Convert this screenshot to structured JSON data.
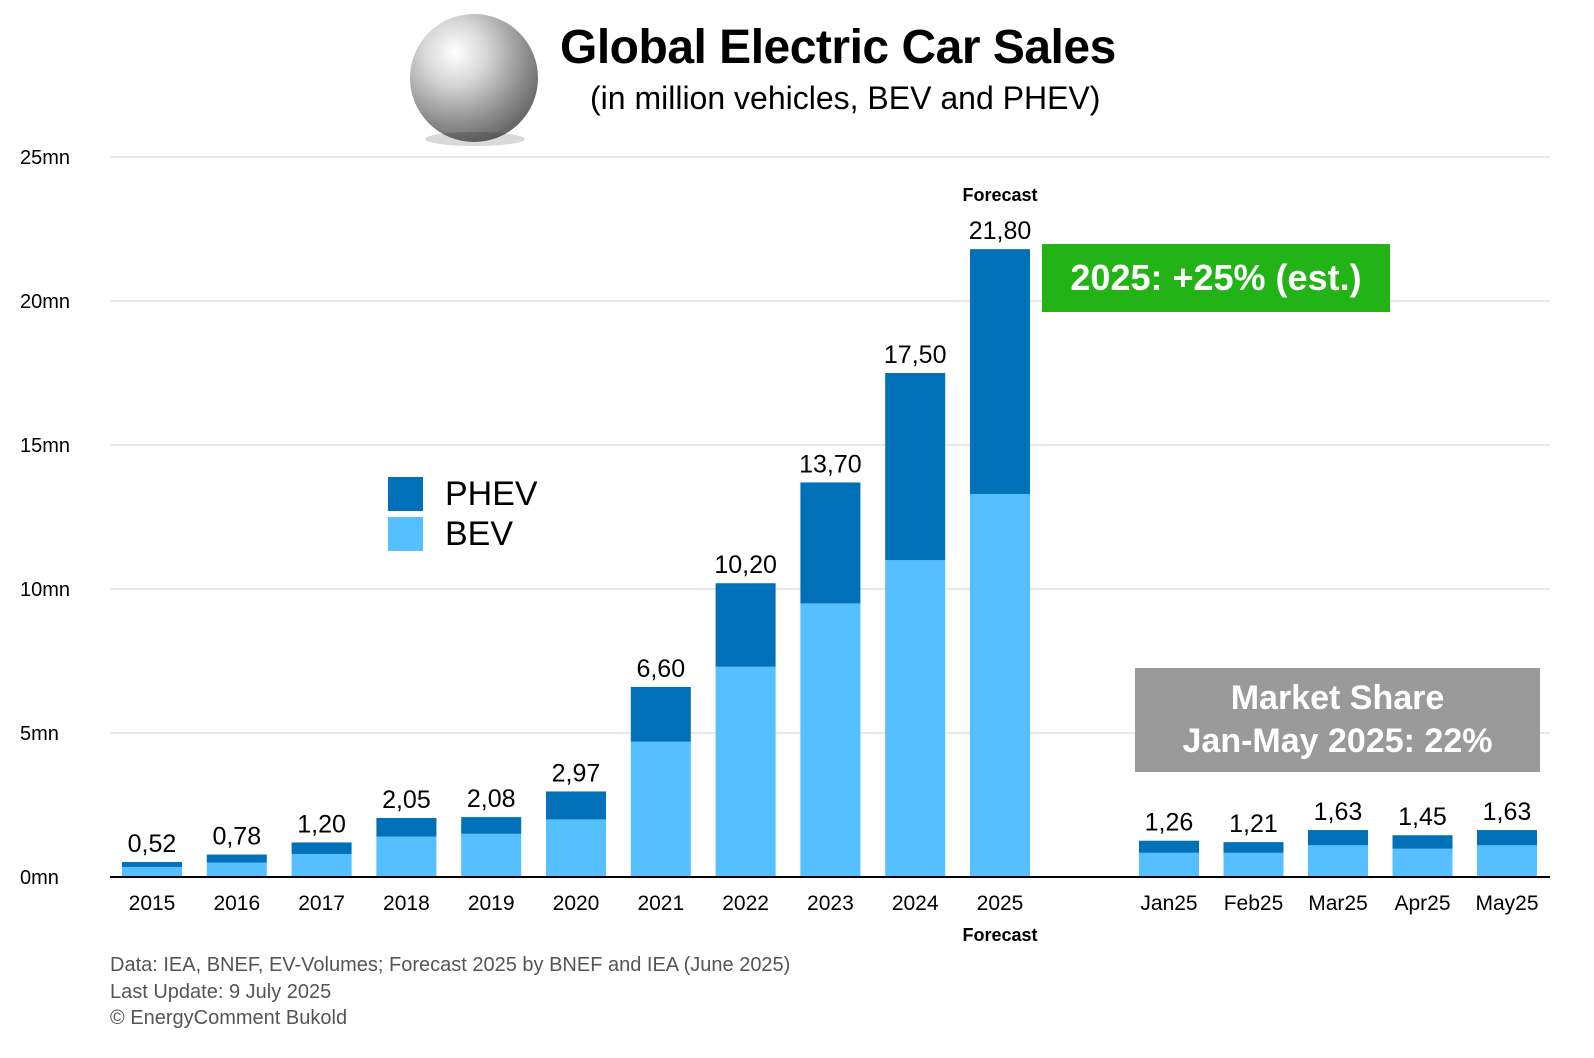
{
  "header": {
    "title": "Global Electric Car Sales",
    "subtitle": "(in million vehicles, BEV and PHEV)",
    "globe_icon": "globe-icon"
  },
  "annotations": {
    "growth": "2025: +25% (est.)",
    "market_share_line1": "Market Share",
    "market_share_line2": "Jan-May 2025: 22%",
    "forecast_top": "Forecast",
    "forecast_bottom": "Forecast"
  },
  "footer": {
    "line1": "Data: IEA, BNEF, EV-Volumes; Forecast 2025 by BNEF and IEA (June 2025)",
    "line2": "Last Update: 9 July 2025",
    "line3": "© EnergyComment Bukold"
  },
  "colors": {
    "phev": "#0070b8",
    "bev": "#55bfff",
    "grid": "#d0d0d0",
    "growth_box": "#22b316",
    "share_box": "#9a9a9a"
  },
  "chart_data": {
    "type": "bar",
    "stacked": true,
    "title": "Global Electric Car Sales",
    "subtitle": "(in million vehicles, BEV and PHEV)",
    "xlabel": "",
    "ylabel": "",
    "ylim": [
      0,
      25
    ],
    "yticks": [
      0,
      5,
      10,
      15,
      20,
      25
    ],
    "ytick_labels": [
      "0mn",
      "5mn",
      "10mn",
      "15mn",
      "20mn",
      "25mn"
    ],
    "grid": true,
    "legend": {
      "position": "center-left",
      "entries": [
        "PHEV",
        "BEV"
      ]
    },
    "categories": [
      "2015",
      "2016",
      "2017",
      "2018",
      "2019",
      "2020",
      "2021",
      "2022",
      "2023",
      "2024",
      "2025",
      "Jan25",
      "Feb25",
      "Mar25",
      "Apr25",
      "May25"
    ],
    "totals": [
      0.52,
      0.78,
      1.2,
      2.05,
      2.08,
      2.97,
      6.6,
      10.2,
      13.7,
      17.5,
      21.8,
      1.26,
      1.21,
      1.63,
      1.45,
      1.63
    ],
    "total_labels": [
      "0,52",
      "0,78",
      "1,20",
      "2,05",
      "2,08",
      "2,97",
      "6,60",
      "10,20",
      "13,70",
      "17,50",
      "21,80",
      "1,26",
      "1,21",
      "1,63",
      "1,45",
      "1,63"
    ],
    "series": [
      {
        "name": "BEV",
        "values": [
          0.35,
          0.5,
          0.8,
          1.4,
          1.5,
          2.0,
          4.7,
          7.3,
          9.5,
          11.0,
          13.3,
          0.84,
          0.84,
          1.1,
          0.98,
          1.1
        ]
      },
      {
        "name": "PHEV",
        "values": [
          0.17,
          0.28,
          0.4,
          0.65,
          0.58,
          0.97,
          1.9,
          2.9,
          4.2,
          6.5,
          8.5,
          0.42,
          0.37,
          0.53,
          0.47,
          0.53
        ]
      }
    ]
  }
}
